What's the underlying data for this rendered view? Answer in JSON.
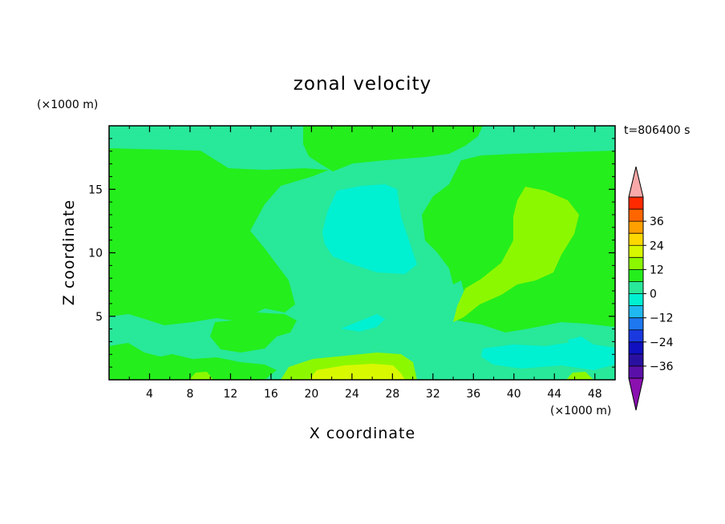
{
  "chart_data": {
    "type": "heatmap",
    "title": "zonal velocity",
    "xlabel": "X coordinate",
    "ylabel": "Z coordinate",
    "x_unit": "(×1000 m)",
    "y_unit": "(×1000 m)",
    "time_label": "t=806400 s",
    "xlim": [
      0,
      50
    ],
    "ylim": [
      0,
      20
    ],
    "x_ticks": [
      4,
      8,
      12,
      16,
      20,
      24,
      28,
      32,
      36,
      40,
      44,
      48
    ],
    "y_ticks": [
      5,
      10,
      15
    ],
    "colorbar": {
      "ticks": [
        36,
        24,
        12,
        0,
        -12,
        -24,
        -36
      ],
      "levels": [
        {
          "range": [
            -42,
            -36
          ],
          "color": "#5a10a8"
        },
        {
          "range": [
            -36,
            -30
          ],
          "color": "#2a10a0"
        },
        {
          "range": [
            -30,
            -24
          ],
          "color": "#1010c0"
        },
        {
          "range": [
            -24,
            -18
          ],
          "color": "#1a3ae0"
        },
        {
          "range": [
            -18,
            -12
          ],
          "color": "#1e78f0"
        },
        {
          "range": [
            -12,
            -6
          ],
          "color": "#20b8f0"
        },
        {
          "range": [
            -6,
            0
          ],
          "color": "#00f0d2"
        },
        {
          "range": [
            0,
            6
          ],
          "color": "#28e89a"
        },
        {
          "range": [
            6,
            12
          ],
          "color": "#24ee1c"
        },
        {
          "range": [
            12,
            18
          ],
          "color": "#8cf800"
        },
        {
          "range": [
            18,
            24
          ],
          "color": "#d8f800"
        },
        {
          "range": [
            24,
            30
          ],
          "color": "#ffd800"
        },
        {
          "range": [
            30,
            36
          ],
          "color": "#ffa000"
        },
        {
          "range": [
            36,
            42
          ],
          "color": "#ff6600"
        },
        {
          "range": [
            42,
            48
          ],
          "color": "#ff2a00"
        }
      ],
      "over_color": "#f8a8a8",
      "under_color": "#8a10b0"
    },
    "field": {
      "background_level": "0 to 6",
      "regions": [
        {
          "name": "upper-left",
          "level": "6 to 12"
        },
        {
          "name": "upper-right",
          "level": "6 to 12"
        },
        {
          "name": "lower-left-mid",
          "level": "6 to 12"
        },
        {
          "name": "center-top",
          "level": "6 to 12"
        },
        {
          "name": "center",
          "level": "-6 to 0"
        },
        {
          "name": "center-low",
          "level": "-6 to 0"
        },
        {
          "name": "lower-right",
          "level": "-6 to 0"
        },
        {
          "name": "right",
          "level": "12 to 18"
        },
        {
          "name": "bottom-center",
          "level": "12 to 18"
        },
        {
          "name": "bottom-center-core",
          "level": "18 to 24"
        }
      ]
    }
  }
}
